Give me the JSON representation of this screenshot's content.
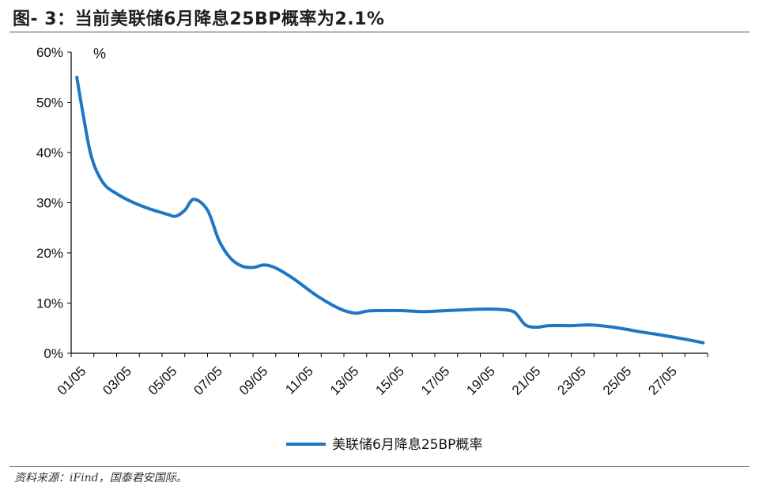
{
  "title": "图- 3：当前美联储6月降息25BP概率为2.1%",
  "source": "资料来源：iFind，国泰君安国际。",
  "chart_data": {
    "type": "line",
    "unit_label": "%",
    "y_ticks": [
      "0%",
      "10%",
      "20%",
      "30%",
      "40%",
      "50%",
      "60%"
    ],
    "ylim": [
      0,
      60
    ],
    "x_ticks": [
      "01/05",
      "03/05",
      "05/05",
      "07/05",
      "09/05",
      "11/05",
      "13/05",
      "15/05",
      "17/05",
      "19/05",
      "21/05",
      "23/05",
      "25/05",
      "27/05"
    ],
    "xlim": [
      0,
      28
    ],
    "grid": false,
    "legend_position": "bottom-center",
    "series": [
      {
        "name": "美联储6月降息25BP概率",
        "color": "#1F77C4",
        "x": [
          0.25,
          0.55,
          0.9,
          1.4,
          2.0,
          2.8,
          3.5,
          4.0,
          4.3,
          4.6,
          5.0,
          5.4,
          6.0,
          6.5,
          7.0,
          7.5,
          8.0,
          8.5,
          9.0,
          9.8,
          10.8,
          11.8,
          12.5,
          13.0,
          13.5,
          14.5,
          15.5,
          16.5,
          17.5,
          18.3,
          19.0,
          19.4,
          19.6,
          20.0,
          20.5,
          21.0,
          22.0,
          22.5,
          23.0,
          24.0,
          25.0,
          26.0,
          27.0,
          27.8
        ],
        "y": [
          55,
          47,
          39,
          34,
          31.8,
          29.9,
          28.7,
          28.0,
          27.6,
          27.3,
          28.5,
          30.7,
          28.5,
          22.5,
          19.0,
          17.4,
          17.1,
          17.6,
          17.0,
          14.8,
          11.5,
          8.9,
          8.0,
          8.4,
          8.5,
          8.5,
          8.3,
          8.5,
          8.7,
          8.8,
          8.7,
          8.4,
          7.8,
          5.6,
          5.2,
          5.5,
          5.5,
          5.6,
          5.6,
          5.1,
          4.3,
          3.6,
          2.8,
          2.1
        ]
      }
    ]
  }
}
